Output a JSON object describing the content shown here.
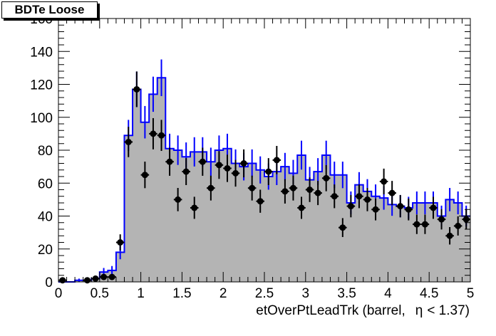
{
  "title": "BDTe Loose",
  "chart_data": {
    "type": "histogram",
    "xlabel_prefix": "etOverPtLeadTrk (barrel,",
    "xlabel_var": "η",
    "xlabel_suffix": "< 1.37)",
    "xlim": [
      0,
      5
    ],
    "ylim": [
      0,
      160
    ],
    "bin_width": 0.1,
    "x_major_ticks": [
      0,
      0.5,
      1,
      1.5,
      2,
      2.5,
      3,
      3.5,
      4,
      4.5,
      5
    ],
    "x_tick_labels": [
      "0",
      "0.5",
      "1",
      "1.5",
      "2",
      "2.5",
      "3",
      "3.5",
      "4",
      "4.5",
      "5"
    ],
    "y_major_ticks": [
      0,
      20,
      40,
      60,
      80,
      100,
      120,
      140,
      160
    ],
    "y_tick_labels": [
      "0",
      "20",
      "40",
      "60",
      "80",
      "100",
      "120",
      "140",
      "160"
    ],
    "histogram_fill_color": "#b4b4b4",
    "histogram_line_color": "#0000ff",
    "marker_color": "#000000",
    "histogram_values": [
      0,
      0,
      1,
      1,
      2,
      6,
      7,
      18,
      89,
      117,
      97,
      114,
      124,
      81,
      80,
      76,
      79,
      79,
      73,
      80,
      81,
      72,
      70,
      72,
      68,
      64,
      67,
      70,
      66,
      77,
      62,
      67,
      77,
      65,
      65,
      48,
      59,
      55,
      52,
      51,
      47,
      46,
      45,
      48,
      48,
      48,
      40,
      50,
      48,
      40
    ],
    "data_x": [
      0.05,
      0.35,
      0.45,
      0.55,
      0.65,
      0.75,
      0.85,
      0.95,
      1.05,
      1.15,
      1.25,
      1.35,
      1.45,
      1.55,
      1.65,
      1.75,
      1.85,
      1.95,
      2.05,
      2.15,
      2.25,
      2.35,
      2.45,
      2.55,
      2.65,
      2.75,
      2.85,
      2.95,
      3.05,
      3.15,
      3.25,
      3.35,
      3.45,
      3.55,
      3.65,
      3.75,
      3.85,
      3.95,
      4.05,
      4.15,
      4.25,
      4.35,
      4.45,
      4.55,
      4.65,
      4.75,
      4.85,
      4.95
    ],
    "data_y": [
      1,
      1,
      2,
      3,
      3,
      24,
      85,
      117,
      65,
      90,
      89,
      73,
      50,
      67,
      45,
      73,
      57,
      71,
      69,
      66,
      72,
      57,
      49,
      67,
      74,
      55,
      57,
      45,
      56,
      54,
      63,
      52,
      33,
      46,
      52,
      50,
      44,
      61,
      54,
      46,
      44,
      35,
      35,
      45,
      38,
      28,
      34,
      38
    ]
  }
}
